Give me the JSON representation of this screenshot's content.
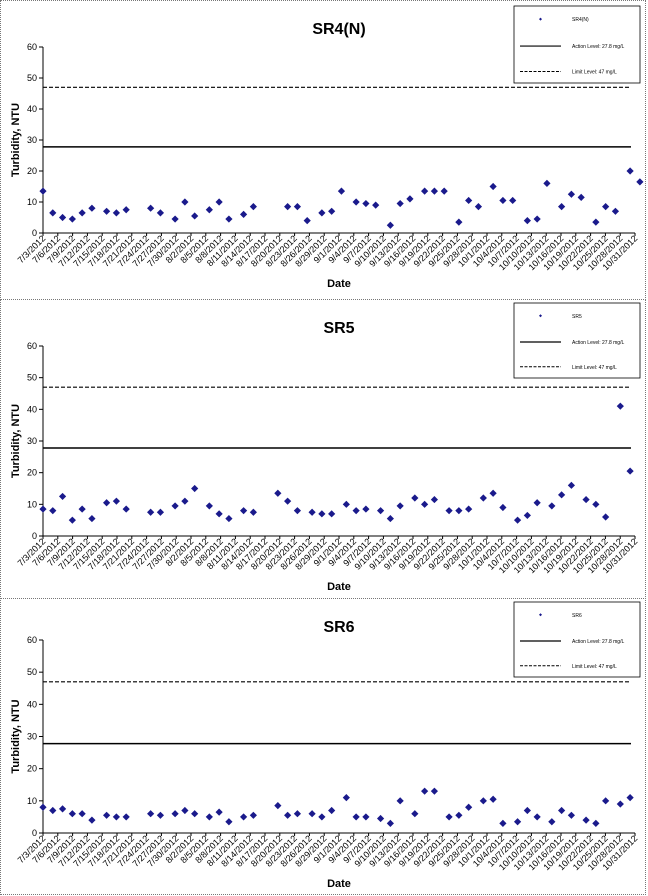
{
  "chart_data": [
    {
      "type": "scatter",
      "title": "SR4(N)",
      "xlabel": "Date",
      "ylabel": "Turbidity, NTU",
      "ylim": [
        0,
        60
      ],
      "yticks": [
        0,
        10,
        20,
        30,
        40,
        50,
        60
      ],
      "xlim": [
        "2012-07-03",
        "2012-11-01"
      ],
      "xtick_labels": [
        "7/3/2012",
        "7/6/2012",
        "7/9/2012",
        "7/12/2012",
        "7/15/2012",
        "7/18/2012",
        "7/21/2012",
        "7/24/2012",
        "7/27/2012",
        "7/30/2012",
        "8/2/2012",
        "8/5/2012",
        "8/8/2012",
        "8/11/2012",
        "8/14/2012",
        "8/17/2012",
        "8/20/2012",
        "8/23/2012",
        "8/26/2012",
        "8/29/2012",
        "9/1/2012",
        "9/4/2012",
        "9/7/2012",
        "9/10/2012",
        "9/13/2012",
        "9/16/2012",
        "9/19/2012",
        "9/22/2012",
        "9/25/2012",
        "9/28/2012",
        "10/1/2012",
        "10/4/2012",
        "10/7/2012",
        "10/10/2012",
        "10/13/2012",
        "10/16/2012",
        "10/19/2012",
        "10/22/2012",
        "10/25/2012",
        "10/28/2012",
        "10/31/2012"
      ],
      "reference_lines": [
        {
          "label": "Action Level: 27.8 mg/L",
          "value": 27.8,
          "style": "solid"
        },
        {
          "label": "Limit Level: 47 mg/L",
          "value": 47,
          "style": "dashed"
        }
      ],
      "series": [
        {
          "name": "SR4(N)",
          "marker": "diamond",
          "color": "#1a1a8c",
          "points": [
            [
              "2012-07-03",
              13.5
            ],
            [
              "2012-07-05",
              6.5
            ],
            [
              "2012-07-07",
              5
            ],
            [
              "2012-07-09",
              4.5
            ],
            [
              "2012-07-11",
              6.5
            ],
            [
              "2012-07-13",
              8
            ],
            [
              "2012-07-16",
              7
            ],
            [
              "2012-07-18",
              6.5
            ],
            [
              "2012-07-20",
              7.5
            ],
            [
              "2012-07-25",
              8
            ],
            [
              "2012-07-27",
              6.5
            ],
            [
              "2012-07-30",
              4.5
            ],
            [
              "2012-08-01",
              10
            ],
            [
              "2012-08-03",
              5.5
            ],
            [
              "2012-08-06",
              7.5
            ],
            [
              "2012-08-08",
              10
            ],
            [
              "2012-08-10",
              4.5
            ],
            [
              "2012-08-13",
              6
            ],
            [
              "2012-08-15",
              8.5
            ],
            [
              "2012-08-22",
              8.5
            ],
            [
              "2012-08-24",
              8.5
            ],
            [
              "2012-08-26",
              4
            ],
            [
              "2012-08-29",
              6.5
            ],
            [
              "2012-08-31",
              7
            ],
            [
              "2012-09-02",
              13.5
            ],
            [
              "2012-09-05",
              10
            ],
            [
              "2012-09-07",
              9.5
            ],
            [
              "2012-09-09",
              9
            ],
            [
              "2012-09-12",
              2.5
            ],
            [
              "2012-09-14",
              9.5
            ],
            [
              "2012-09-16",
              11
            ],
            [
              "2012-09-19",
              13.5
            ],
            [
              "2012-09-21",
              13.5
            ],
            [
              "2012-09-23",
              13.5
            ],
            [
              "2012-09-26",
              3.5
            ],
            [
              "2012-09-28",
              10.5
            ],
            [
              "2012-09-30",
              8.5
            ],
            [
              "2012-10-03",
              15
            ],
            [
              "2012-10-05",
              10.5
            ],
            [
              "2012-10-07",
              10.5
            ],
            [
              "2012-10-10",
              4
            ],
            [
              "2012-10-12",
              4.5
            ],
            [
              "2012-10-14",
              16
            ],
            [
              "2012-10-17",
              8.5
            ],
            [
              "2012-10-19",
              12.5
            ],
            [
              "2012-10-21",
              11.5
            ],
            [
              "2012-10-24",
              3.5
            ],
            [
              "2012-10-26",
              8.5
            ],
            [
              "2012-10-28",
              7
            ],
            [
              "2012-10-31",
              20
            ],
            [
              "2012-11-02",
              16.5
            ]
          ]
        }
      ]
    },
    {
      "type": "scatter",
      "title": "SR5",
      "xlabel": "Date",
      "ylabel": "Turbidity, NTU",
      "ylim": [
        0,
        60
      ],
      "yticks": [
        0,
        10,
        20,
        30,
        40,
        50,
        60
      ],
      "xlim": [
        "2012-07-03",
        "2012-11-01"
      ],
      "xtick_labels": [
        "7/3/2012",
        "7/6/2012",
        "7/9/2012",
        "7/12/2012",
        "7/15/2012",
        "7/18/2012",
        "7/21/2012",
        "7/24/2012",
        "7/27/2012",
        "7/30/2012",
        "8/2/2012",
        "8/5/2012",
        "8/8/2012",
        "8/11/2012",
        "8/14/2012",
        "8/17/2012",
        "8/20/2012",
        "8/23/2012",
        "8/26/2012",
        "8/29/2012",
        "9/1/2012",
        "9/4/2012",
        "9/7/2012",
        "9/10/2012",
        "9/13/2012",
        "9/16/2012",
        "9/19/2012",
        "9/22/2012",
        "9/25/2012",
        "9/28/2012",
        "10/1/2012",
        "10/4/2012",
        "10/7/2012",
        "10/10/2012",
        "10/13/2012",
        "10/16/2012",
        "10/19/2012",
        "10/22/2012",
        "10/25/2012",
        "10/28/2012",
        "10/31/2012"
      ],
      "reference_lines": [
        {
          "label": "Action Level: 27.8 mg/L",
          "value": 27.8,
          "style": "solid"
        },
        {
          "label": "Limit Level: 47 mg/L",
          "value": 47,
          "style": "dashed"
        }
      ],
      "series": [
        {
          "name": "SR5",
          "marker": "diamond",
          "color": "#1a1a8c",
          "points": [
            [
              "2012-07-03",
              8.5
            ],
            [
              "2012-07-05",
              8
            ],
            [
              "2012-07-07",
              12.5
            ],
            [
              "2012-07-09",
              5
            ],
            [
              "2012-07-11",
              8.5
            ],
            [
              "2012-07-13",
              5.5
            ],
            [
              "2012-07-16",
              10.5
            ],
            [
              "2012-07-18",
              11
            ],
            [
              "2012-07-20",
              8.5
            ],
            [
              "2012-07-25",
              7.5
            ],
            [
              "2012-07-27",
              7.5
            ],
            [
              "2012-07-30",
              9.5
            ],
            [
              "2012-08-01",
              11
            ],
            [
              "2012-08-03",
              15
            ],
            [
              "2012-08-06",
              9.5
            ],
            [
              "2012-08-08",
              7
            ],
            [
              "2012-08-10",
              5.5
            ],
            [
              "2012-08-13",
              8
            ],
            [
              "2012-08-15",
              7.5
            ],
            [
              "2012-08-20",
              13.5
            ],
            [
              "2012-08-22",
              11
            ],
            [
              "2012-08-24",
              8
            ],
            [
              "2012-08-27",
              7.5
            ],
            [
              "2012-08-29",
              7
            ],
            [
              "2012-08-31",
              7
            ],
            [
              "2012-09-03",
              10
            ],
            [
              "2012-09-05",
              8
            ],
            [
              "2012-09-07",
              8.5
            ],
            [
              "2012-09-10",
              8
            ],
            [
              "2012-09-12",
              5.5
            ],
            [
              "2012-09-14",
              9.5
            ],
            [
              "2012-09-17",
              12
            ],
            [
              "2012-09-19",
              10
            ],
            [
              "2012-09-21",
              11.5
            ],
            [
              "2012-09-24",
              8
            ],
            [
              "2012-09-26",
              8
            ],
            [
              "2012-09-28",
              8.5
            ],
            [
              "2012-10-01",
              12
            ],
            [
              "2012-10-03",
              13.5
            ],
            [
              "2012-10-05",
              9
            ],
            [
              "2012-10-08",
              5
            ],
            [
              "2012-10-10",
              6.5
            ],
            [
              "2012-10-12",
              10.5
            ],
            [
              "2012-10-15",
              9.5
            ],
            [
              "2012-10-17",
              13
            ],
            [
              "2012-10-19",
              16
            ],
            [
              "2012-10-22",
              11.5
            ],
            [
              "2012-10-24",
              10
            ],
            [
              "2012-10-26",
              6
            ],
            [
              "2012-10-29",
              41
            ],
            [
              "2012-10-31",
              20.5
            ]
          ]
        }
      ]
    },
    {
      "type": "scatter",
      "title": "SR6",
      "xlabel": "Date",
      "ylabel": "Turbidity, NTU",
      "ylim": [
        0,
        60
      ],
      "yticks": [
        0,
        10,
        20,
        30,
        40,
        50,
        60
      ],
      "xlim": [
        "2012-07-03",
        "2012-11-01"
      ],
      "xtick_labels": [
        "7/3/2012",
        "7/6/2012",
        "7/9/2012",
        "7/12/2012",
        "7/15/2012",
        "7/18/2012",
        "7/21/2012",
        "7/24/2012",
        "7/27/2012",
        "7/30/2012",
        "8/2/2012",
        "8/5/2012",
        "8/8/2012",
        "8/11/2012",
        "8/14/2012",
        "8/17/2012",
        "8/20/2012",
        "8/23/2012",
        "8/26/2012",
        "8/29/2012",
        "9/1/2012",
        "9/4/2012",
        "9/7/2012",
        "9/10/2012",
        "9/13/2012",
        "9/16/2012",
        "9/19/2012",
        "9/22/2012",
        "9/25/2012",
        "9/28/2012",
        "10/1/2012",
        "10/4/2012",
        "10/7/2012",
        "10/10/2012",
        "10/13/2012",
        "10/16/2012",
        "10/19/2012",
        "10/22/2012",
        "10/25/2012",
        "10/28/2012",
        "10/31/2012"
      ],
      "reference_lines": [
        {
          "label": "Action Level: 27.8 mg/L",
          "value": 27.8,
          "style": "solid"
        },
        {
          "label": "Limit Level: 47 mg/L",
          "value": 47,
          "style": "dashed"
        }
      ],
      "series": [
        {
          "name": "SR6",
          "marker": "diamond",
          "color": "#1a1a8c",
          "points": [
            [
              "2012-07-03",
              8
            ],
            [
              "2012-07-05",
              7
            ],
            [
              "2012-07-07",
              7.5
            ],
            [
              "2012-07-09",
              6
            ],
            [
              "2012-07-11",
              6
            ],
            [
              "2012-07-13",
              4
            ],
            [
              "2012-07-16",
              5.5
            ],
            [
              "2012-07-18",
              5
            ],
            [
              "2012-07-20",
              5
            ],
            [
              "2012-07-25",
              6
            ],
            [
              "2012-07-27",
              5.5
            ],
            [
              "2012-07-30",
              6
            ],
            [
              "2012-08-01",
              7
            ],
            [
              "2012-08-03",
              6
            ],
            [
              "2012-08-06",
              5
            ],
            [
              "2012-08-08",
              6.5
            ],
            [
              "2012-08-10",
              3.5
            ],
            [
              "2012-08-13",
              5
            ],
            [
              "2012-08-15",
              5.5
            ],
            [
              "2012-08-20",
              8.5
            ],
            [
              "2012-08-22",
              5.5
            ],
            [
              "2012-08-24",
              6
            ],
            [
              "2012-08-27",
              6
            ],
            [
              "2012-08-29",
              5
            ],
            [
              "2012-08-31",
              7
            ],
            [
              "2012-09-03",
              11
            ],
            [
              "2012-09-05",
              5
            ],
            [
              "2012-09-07",
              5
            ],
            [
              "2012-09-10",
              4.5
            ],
            [
              "2012-09-12",
              3
            ],
            [
              "2012-09-14",
              10
            ],
            [
              "2012-09-17",
              6
            ],
            [
              "2012-09-19",
              13
            ],
            [
              "2012-09-21",
              13
            ],
            [
              "2012-09-24",
              5
            ],
            [
              "2012-09-26",
              5.5
            ],
            [
              "2012-09-28",
              8
            ],
            [
              "2012-10-01",
              10
            ],
            [
              "2012-10-03",
              10.5
            ],
            [
              "2012-10-05",
              3
            ],
            [
              "2012-10-08",
              3.5
            ],
            [
              "2012-10-10",
              7
            ],
            [
              "2012-10-12",
              5
            ],
            [
              "2012-10-15",
              3.5
            ],
            [
              "2012-10-17",
              7
            ],
            [
              "2012-10-19",
              5.5
            ],
            [
              "2012-10-22",
              4
            ],
            [
              "2012-10-24",
              3
            ],
            [
              "2012-10-26",
              10
            ],
            [
              "2012-10-29",
              9
            ],
            [
              "2012-10-31",
              11
            ]
          ]
        }
      ]
    }
  ]
}
